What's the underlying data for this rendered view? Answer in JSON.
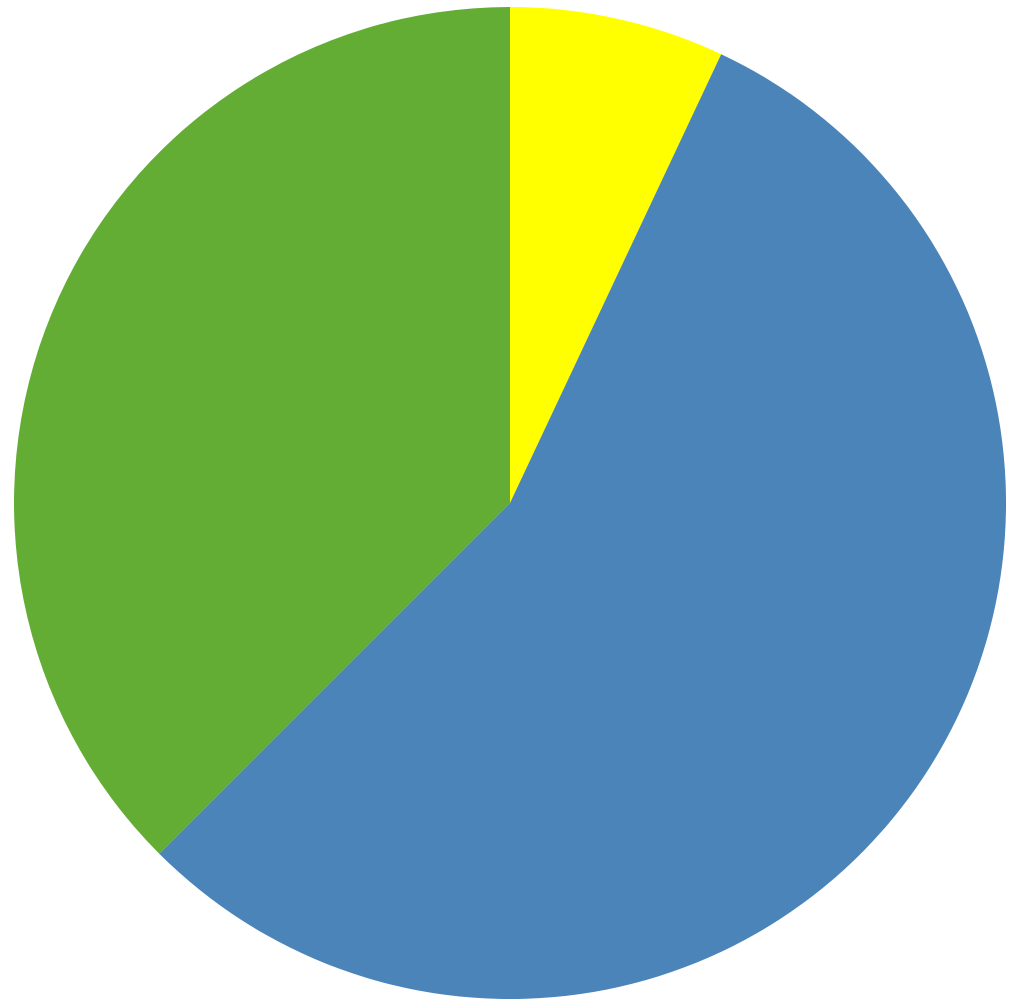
{
  "chart_data": {
    "type": "pie",
    "title": "",
    "slices": [
      {
        "value": 7.0,
        "color": "#ffff00"
      },
      {
        "value": 55.5,
        "color": "#4a84b9"
      },
      {
        "value": 37.5,
        "color": "#63ad35"
      }
    ],
    "start_angle_deg": 0,
    "direction": "clockwise",
    "legend": "none"
  }
}
